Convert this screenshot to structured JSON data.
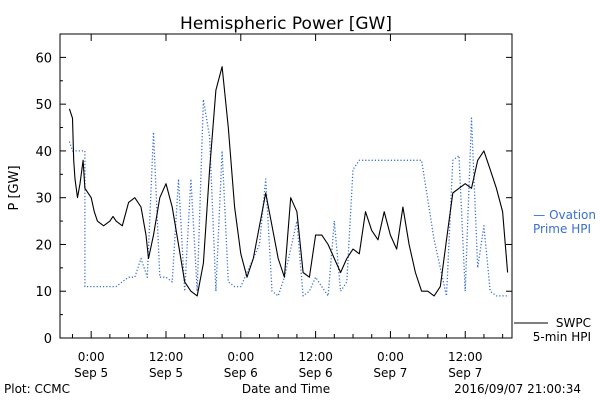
{
  "chart_data": {
    "type": "line",
    "title": "Hemispheric Power [GW]",
    "ylabel": "P [GW]",
    "xlabel": "Date and Time",
    "ylim": [
      0,
      65
    ],
    "xlim": [
      -5,
      67.5
    ],
    "yticks": [
      0,
      10,
      20,
      30,
      40,
      50,
      60
    ],
    "xticks": [
      {
        "x": 0,
        "time": "0:00",
        "date": "Sep 5"
      },
      {
        "x": 12,
        "time": "12:00",
        "date": "Sep 5"
      },
      {
        "x": 24,
        "time": "0:00",
        "date": "Sep 6"
      },
      {
        "x": 36,
        "time": "12:00",
        "date": "Sep 6"
      },
      {
        "x": 48,
        "time": "0:00",
        "date": "Sep 7"
      },
      {
        "x": 60,
        "time": "12:00",
        "date": "Sep 7"
      }
    ],
    "series": [
      {
        "name": "SWPC 5-min HPI",
        "color": "#000000",
        "style": "solid",
        "x": [
          -3.5,
          -3,
          -2.8,
          -2.6,
          -2.2,
          -1.8,
          -1.3,
          -1,
          0,
          0.5,
          1,
          2,
          3,
          3.5,
          4,
          5,
          6,
          7,
          8,
          8.8,
          9.2,
          10,
          11,
          12,
          13,
          14,
          15,
          16,
          17,
          18,
          19,
          20,
          21,
          22,
          23,
          24,
          25,
          26,
          27,
          28,
          29,
          30,
          31,
          32,
          33,
          34,
          35,
          36,
          37,
          38,
          39,
          40,
          41,
          42,
          43,
          44,
          45,
          46,
          47,
          48,
          49,
          50,
          51,
          52,
          53,
          54,
          55,
          56,
          57,
          58,
          59,
          60,
          61,
          62,
          63,
          64,
          65,
          66,
          66.8
        ],
        "values": [
          49,
          47,
          38,
          34,
          30,
          33,
          38,
          32,
          30,
          27,
          25,
          24,
          25,
          26,
          25,
          24,
          29,
          30,
          28,
          22,
          17,
          22,
          30,
          33,
          28,
          20,
          12,
          10,
          9,
          16,
          36,
          53,
          58,
          45,
          28,
          18,
          13,
          17,
          24,
          31,
          24,
          17,
          13,
          30,
          27,
          14,
          13,
          22,
          22,
          20,
          17,
          14,
          17,
          19,
          18,
          27,
          23,
          21,
          27,
          22,
          19,
          28,
          20,
          14,
          10,
          10,
          9,
          11,
          21,
          31,
          32,
          33,
          32,
          38,
          40,
          36,
          32,
          27,
          14
        ]
      },
      {
        "name": "Ovation Prime HPI",
        "color": "#3a6fd0",
        "style": "dotted",
        "x": [
          -3.5,
          -3,
          -2,
          -1,
          -1,
          0,
          0,
          2,
          2,
          4,
          4,
          5,
          5,
          6,
          6,
          7,
          7,
          8,
          8,
          9,
          9,
          10,
          10,
          11,
          11,
          12,
          12,
          13,
          13,
          14,
          14,
          15,
          15,
          16,
          16,
          17,
          17,
          18,
          18,
          19,
          19,
          20,
          20,
          21,
          21,
          22,
          22,
          23,
          23,
          24,
          24,
          27,
          27,
          28,
          28,
          29,
          29,
          30,
          30,
          31,
          31,
          33,
          33,
          34,
          34,
          35,
          35,
          36,
          36,
          37,
          37,
          38,
          38,
          39,
          39,
          40,
          40,
          41,
          41,
          42,
          42,
          43,
          43,
          44,
          44,
          45,
          45,
          46,
          46,
          47,
          47,
          48,
          48,
          50,
          50,
          53,
          53,
          55,
          55,
          57,
          57,
          58,
          58,
          59,
          59,
          60,
          60,
          61,
          61,
          62,
          62,
          63,
          63,
          64,
          64,
          65,
          65,
          66,
          66,
          67
        ],
        "values": [
          42,
          40,
          40,
          40,
          11,
          11,
          11,
          11,
          11,
          11,
          11,
          12,
          12,
          13,
          13,
          13,
          13,
          17,
          17,
          13,
          13,
          44,
          44,
          13,
          13,
          13,
          13,
          12,
          12,
          34,
          34,
          10,
          10,
          34,
          34,
          10,
          10,
          51,
          51,
          43,
          43,
          10,
          10,
          40,
          40,
          12,
          12,
          11,
          11,
          11,
          11,
          20,
          20,
          34,
          34,
          10,
          10,
          9,
          9,
          13,
          13,
          25,
          25,
          9,
          9,
          10,
          10,
          13,
          13,
          11,
          11,
          9,
          9,
          25,
          25,
          10,
          10,
          12,
          12,
          36,
          36,
          38,
          38,
          38,
          38,
          38,
          38,
          38,
          38,
          38,
          38,
          38,
          38,
          38,
          38,
          38,
          38,
          21,
          21,
          9,
          9,
          38,
          38,
          39,
          39,
          10,
          10,
          47,
          47,
          15,
          15,
          24,
          24,
          10,
          10,
          9,
          9,
          9,
          9,
          9
        ]
      }
    ],
    "legend": {
      "placement": "right",
      "swpc_line1": "SWPC",
      "swpc_line2": "5-min HPI",
      "ovation_line1": "— Ovation",
      "ovation_line2": "Prime HPI"
    },
    "footer": {
      "left": "Plot: CCMC",
      "right": "2016/09/07 21:00:34"
    }
  }
}
